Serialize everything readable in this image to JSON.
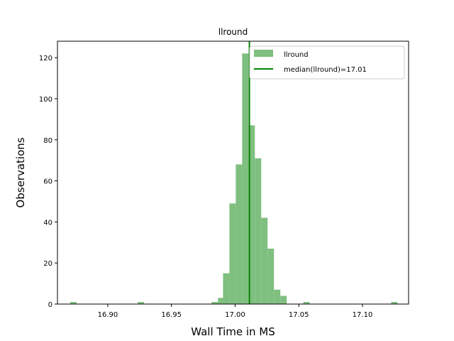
{
  "chart_data": {
    "type": "bar",
    "title": "llround",
    "xlabel": "Wall Time in MS",
    "ylabel": "Observations",
    "xlim": [
      16.8605,
      17.1362
    ],
    "ylim": [
      0,
      128
    ],
    "xticks": [
      16.9,
      16.95,
      17.0,
      17.05,
      17.1
    ],
    "xtick_labels": [
      "16.90",
      "16.95",
      "17.00",
      "17.05",
      "17.10"
    ],
    "yticks": [
      0,
      20,
      40,
      60,
      80,
      100,
      120
    ],
    "ytick_labels": [
      "0",
      "20",
      "40",
      "60",
      "80",
      "100",
      "120"
    ],
    "bin_width": 0.005,
    "legend_position": "top-right",
    "series": [
      {
        "name": "llround",
        "kind": "histogram",
        "color": "#7fbf7f",
        "bins": [
          {
            "x0": 16.8705,
            "count": 1
          },
          {
            "x0": 16.9235,
            "count": 1
          },
          {
            "x0": 16.9815,
            "count": 1
          },
          {
            "x0": 16.9865,
            "count": 3
          },
          {
            "x0": 16.9905,
            "count": 15
          },
          {
            "x0": 16.9955,
            "count": 49
          },
          {
            "x0": 17.0005,
            "count": 68
          },
          {
            "x0": 17.0055,
            "count": 122
          },
          {
            "x0": 17.0105,
            "count": 87
          },
          {
            "x0": 17.0155,
            "count": 71
          },
          {
            "x0": 17.0205,
            "count": 42
          },
          {
            "x0": 17.0255,
            "count": 27
          },
          {
            "x0": 17.0305,
            "count": 7
          },
          {
            "x0": 17.0355,
            "count": 4
          },
          {
            "x0": 17.0535,
            "count": 1
          },
          {
            "x0": 17.1225,
            "count": 1
          }
        ]
      },
      {
        "name": "median(llround)=17.01",
        "kind": "vline",
        "color": "#008000",
        "x": 17.0112
      }
    ]
  }
}
